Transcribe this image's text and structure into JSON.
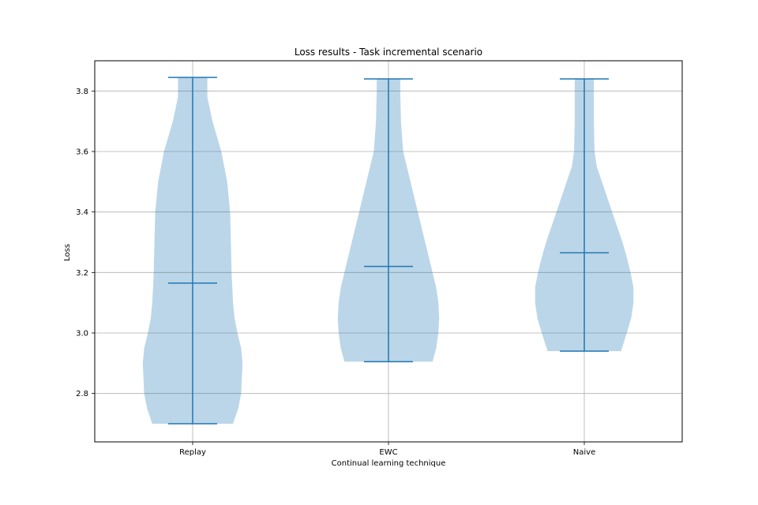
{
  "chart_data": {
    "type": "violin",
    "title": "Loss results - Task incremental scenario",
    "xlabel": "Continual learning technique",
    "ylabel": "Loss",
    "ylim": [
      2.64,
      3.9
    ],
    "yticks": [
      2.8,
      3.0,
      3.2,
      3.4,
      3.6,
      3.8
    ],
    "ytick_labels": [
      "2.8",
      "3.0",
      "3.2",
      "3.4",
      "3.6",
      "3.8"
    ],
    "categories": [
      "Replay",
      "EWC",
      "Naive"
    ],
    "grid": true,
    "series": [
      {
        "name": "Replay",
        "min": 2.7,
        "max": 3.845,
        "mean": 3.165,
        "profile": [
          {
            "y": 2.7,
            "w": 0.55
          },
          {
            "y": 2.75,
            "w": 0.62
          },
          {
            "y": 2.8,
            "w": 0.66
          },
          {
            "y": 2.85,
            "w": 0.67
          },
          {
            "y": 2.9,
            "w": 0.68
          },
          {
            "y": 2.95,
            "w": 0.66
          },
          {
            "y": 3.0,
            "w": 0.61
          },
          {
            "y": 3.05,
            "w": 0.57
          },
          {
            "y": 3.1,
            "w": 0.55
          },
          {
            "y": 3.15,
            "w": 0.54
          },
          {
            "y": 3.2,
            "w": 0.53
          },
          {
            "y": 3.3,
            "w": 0.52
          },
          {
            "y": 3.4,
            "w": 0.51
          },
          {
            "y": 3.5,
            "w": 0.47
          },
          {
            "y": 3.6,
            "w": 0.39
          },
          {
            "y": 3.7,
            "w": 0.27
          },
          {
            "y": 3.78,
            "w": 0.2
          },
          {
            "y": 3.845,
            "w": 0.2
          }
        ]
      },
      {
        "name": "EWC",
        "min": 2.905,
        "max": 3.84,
        "mean": 3.22,
        "profile": [
          {
            "y": 2.905,
            "w": 0.6
          },
          {
            "y": 2.95,
            "w": 0.65
          },
          {
            "y": 3.0,
            "w": 0.68
          },
          {
            "y": 3.05,
            "w": 0.69
          },
          {
            "y": 3.1,
            "w": 0.68
          },
          {
            "y": 3.15,
            "w": 0.65
          },
          {
            "y": 3.2,
            "w": 0.6
          },
          {
            "y": 3.3,
            "w": 0.5
          },
          {
            "y": 3.4,
            "w": 0.4
          },
          {
            "y": 3.5,
            "w": 0.3
          },
          {
            "y": 3.6,
            "w": 0.2
          },
          {
            "y": 3.7,
            "w": 0.17
          },
          {
            "y": 3.8,
            "w": 0.16
          },
          {
            "y": 3.84,
            "w": 0.16
          }
        ]
      },
      {
        "name": "Naive",
        "min": 2.94,
        "max": 3.84,
        "mean": 3.265,
        "profile": [
          {
            "y": 2.94,
            "w": 0.5
          },
          {
            "y": 3.0,
            "w": 0.58
          },
          {
            "y": 3.05,
            "w": 0.64
          },
          {
            "y": 3.1,
            "w": 0.67
          },
          {
            "y": 3.15,
            "w": 0.67
          },
          {
            "y": 3.2,
            "w": 0.63
          },
          {
            "y": 3.25,
            "w": 0.58
          },
          {
            "y": 3.3,
            "w": 0.52
          },
          {
            "y": 3.4,
            "w": 0.38
          },
          {
            "y": 3.5,
            "w": 0.24
          },
          {
            "y": 3.55,
            "w": 0.17
          },
          {
            "y": 3.6,
            "w": 0.14
          },
          {
            "y": 3.7,
            "w": 0.13
          },
          {
            "y": 3.84,
            "w": 0.13
          }
        ]
      }
    ],
    "colors": {
      "body": "#1f77b4",
      "body_opacity": 0.3,
      "lines": "#1f77b4",
      "grid": "#b0b0b0"
    }
  }
}
